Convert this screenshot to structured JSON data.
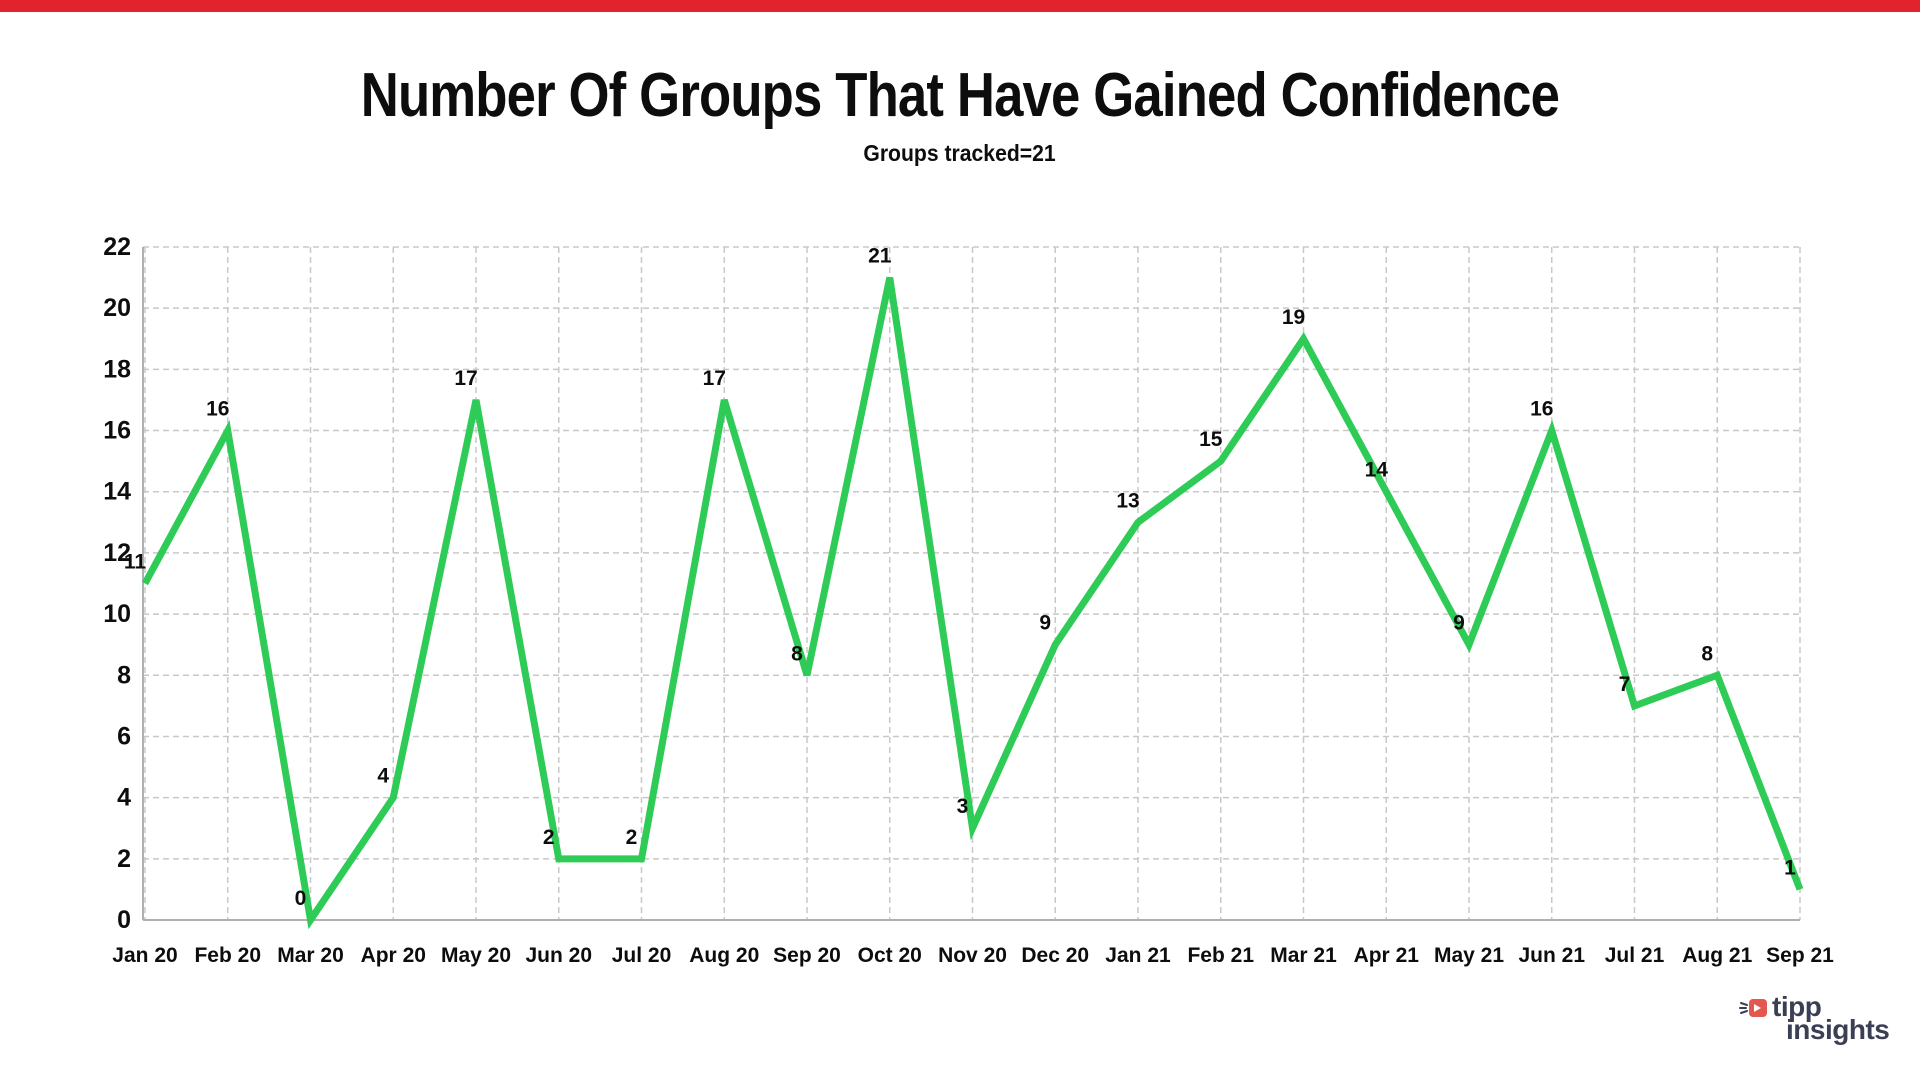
{
  "page": {
    "background": "#ffffff",
    "accent_bar_color": "#e1232e"
  },
  "header": {
    "title": "Number Of Groups That Have Gained Confidence",
    "subtitle": "Groups tracked=21"
  },
  "chart_data": {
    "type": "line",
    "title": "Number Of Groups That Have Gained Confidence",
    "subtitle": "Groups tracked=21",
    "categories": [
      "Jan 20",
      "Feb 20",
      "Mar 20",
      "Apr 20",
      "May 20",
      "Jun 20",
      "Jul 20",
      "Aug 20",
      "Sep 20",
      "Oct 20",
      "Nov 20",
      "Dec 20",
      "Jan 21",
      "Feb 21",
      "Mar 21",
      "Apr 21",
      "May 21",
      "Jun 21",
      "Jul 21",
      "Aug 21",
      "Sep 21"
    ],
    "values": [
      11,
      16,
      0,
      4,
      17,
      2,
      2,
      17,
      8,
      21,
      3,
      9,
      13,
      15,
      19,
      14,
      9,
      16,
      7,
      8,
      1
    ],
    "yticks": [
      0,
      2,
      4,
      6,
      8,
      10,
      12,
      14,
      16,
      18,
      20,
      22
    ],
    "ylim": [
      0,
      22
    ],
    "xlabel": "",
    "ylabel": "",
    "grid": true,
    "grid_style": "dashed",
    "legend_position": "none",
    "line_color": "#2ecc56",
    "grid_color": "#c8c8c8",
    "axis_color": "#b0b0b0",
    "tick_label_color": "#0d0d0d",
    "data_labels": true,
    "data_label_color": "#0d0d0d"
  },
  "branding": {
    "logo_line1": "tipp",
    "logo_line2": "insights",
    "text_color": "#3a3f54",
    "icon_color": "#e4574e",
    "icon": "arrow-burst-icon"
  }
}
